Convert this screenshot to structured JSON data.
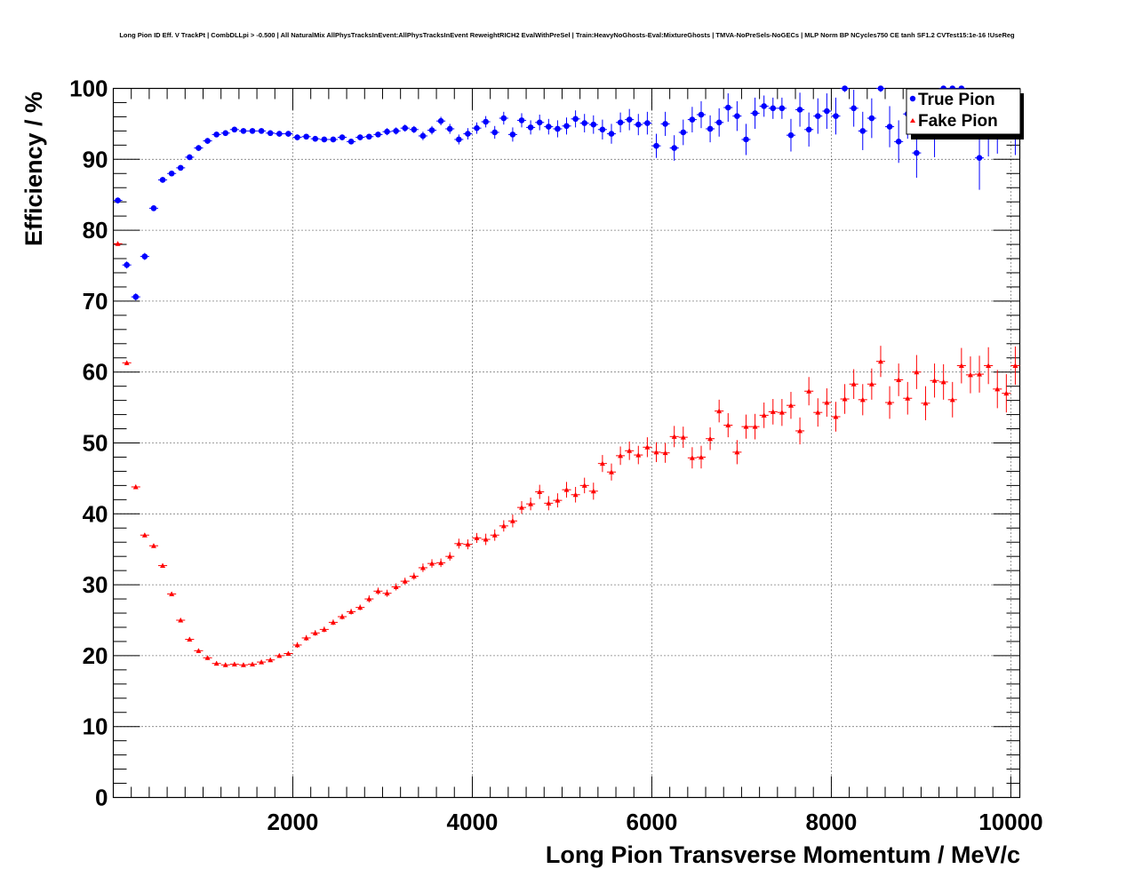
{
  "chart_data": {
    "type": "scatter",
    "title": "Long Pion ID Eff. V TrackPt | CombDLLpi > -0.500 | All NaturalMix AllPhysTracksInEvent:AllPhysTracksInEvent ReweightRICH2 EvalWithPreSel | Train:HeavyNoGhosts-Eval:MixtureGhosts | TMVA-NoPreSels-NoGECs | MLP Norm BP NCycles750 CE tanh SF1.2 CVTest15:1e-16 !UseReg",
    "xlabel": "Long Pion Transverse Momentum / MeV/c",
    "ylabel": "Efficiency / %",
    "xlim": [
      0,
      10100
    ],
    "ylim": [
      0,
      100
    ],
    "x_ticks": [
      2000,
      4000,
      6000,
      8000,
      10000
    ],
    "y_ticks": [
      0,
      10,
      20,
      30,
      40,
      50,
      60,
      70,
      80,
      90,
      100
    ],
    "grid": true,
    "legend_position": "top-right",
    "x": [
      50,
      150,
      250,
      350,
      450,
      550,
      650,
      750,
      850,
      950,
      1050,
      1150,
      1250,
      1350,
      1450,
      1550,
      1650,
      1750,
      1850,
      1950,
      2050,
      2150,
      2250,
      2350,
      2450,
      2550,
      2650,
      2750,
      2850,
      2950,
      3050,
      3150,
      3250,
      3350,
      3450,
      3550,
      3650,
      3750,
      3850,
      3950,
      4050,
      4150,
      4250,
      4350,
      4450,
      4550,
      4650,
      4750,
      4850,
      4950,
      5050,
      5150,
      5250,
      5350,
      5450,
      5550,
      5650,
      5750,
      5850,
      5950,
      6050,
      6150,
      6250,
      6350,
      6450,
      6550,
      6650,
      6750,
      6850,
      6950,
      7050,
      7150,
      7250,
      7350,
      7450,
      7550,
      7650,
      7750,
      7850,
      7950,
      8050,
      8150,
      8250,
      8350,
      8450,
      8550,
      8650,
      8750,
      8850,
      8950,
      9050,
      9150,
      9250,
      9350,
      9450,
      9550,
      9650,
      9750,
      9850,
      9950,
      10050
    ],
    "series": [
      {
        "name": "True Pion",
        "color": "#0000ff",
        "marker": "circle",
        "values": [
          84.2,
          75.1,
          70.6,
          76.3,
          83.1,
          87.1,
          88.0,
          88.8,
          90.3,
          91.6,
          92.6,
          93.5,
          93.7,
          94.2,
          94.0,
          94.0,
          94.0,
          93.7,
          93.6,
          93.6,
          93.1,
          93.2,
          92.9,
          92.8,
          92.8,
          93.1,
          92.5,
          93.1,
          93.2,
          93.5,
          93.9,
          94.0,
          94.4,
          94.2,
          93.3,
          94.1,
          95.4,
          94.3,
          92.8,
          93.6,
          94.4,
          95.3,
          93.8,
          95.8,
          93.5,
          95.5,
          94.5,
          95.2,
          94.6,
          94.3,
          94.7,
          95.7,
          95.1,
          94.9,
          94.2,
          93.6,
          95.2,
          95.6,
          94.9,
          95.1,
          91.9,
          95.0,
          91.6,
          93.8,
          95.6,
          96.3,
          94.3,
          95.2,
          97.3,
          96.1,
          92.8,
          96.5,
          97.5,
          97.2,
          97.2,
          93.4,
          97.0,
          94.2,
          96.1,
          96.8,
          96.1,
          100.0,
          97.2,
          94.0,
          95.8,
          100.0,
          94.6,
          92.5,
          96.4,
          90.9,
          96.3,
          93.5,
          100.0,
          100.0,
          100.0,
          96.4,
          90.2,
          93.9,
          94.3,
          96.8,
          94.1
        ],
        "errors": [
          0.4,
          0.5,
          0.5,
          0.5,
          0.4,
          0.4,
          0.4,
          0.4,
          0.4,
          0.4,
          0.4,
          0.4,
          0.4,
          0.4,
          0.4,
          0.4,
          0.4,
          0.4,
          0.4,
          0.4,
          0.4,
          0.4,
          0.4,
          0.4,
          0.4,
          0.4,
          0.4,
          0.4,
          0.4,
          0.4,
          0.5,
          0.5,
          0.5,
          0.5,
          0.6,
          0.6,
          0.6,
          0.7,
          0.7,
          0.8,
          0.8,
          0.8,
          0.9,
          0.9,
          1.0,
          1.0,
          1.0,
          1.1,
          1.1,
          1.2,
          1.2,
          1.2,
          1.3,
          1.3,
          1.4,
          1.4,
          1.4,
          1.5,
          1.5,
          1.6,
          1.7,
          1.7,
          1.8,
          1.8,
          1.8,
          1.9,
          1.9,
          2.0,
          2.0,
          2.1,
          2.2,
          2.2,
          1.5,
          1.5,
          1.5,
          2.3,
          2.4,
          2.4,
          2.5,
          2.5,
          2.6,
          0.5,
          2.6,
          2.7,
          2.8,
          0.5,
          2.9,
          3.0,
          3.5,
          3.5,
          3.0,
          3.2,
          0.5,
          0.5,
          0.5,
          3.3,
          4.5,
          3.5,
          3.5,
          3.3,
          3.5
        ]
      },
      {
        "name": "Fake Pion",
        "color": "#ff0000",
        "marker": "triangle",
        "values": [
          78.1,
          61.3,
          43.8,
          37.0,
          35.5,
          32.7,
          28.7,
          25.0,
          22.3,
          20.7,
          19.7,
          18.9,
          18.7,
          18.8,
          18.7,
          18.8,
          19.1,
          19.4,
          20.0,
          20.3,
          21.5,
          22.5,
          23.2,
          23.7,
          24.7,
          25.5,
          26.2,
          26.8,
          28.0,
          29.1,
          28.8,
          29.7,
          30.5,
          31.2,
          32.4,
          33.0,
          33.1,
          34.0,
          35.8,
          35.7,
          36.6,
          36.4,
          37.0,
          38.3,
          39.0,
          40.9,
          41.4,
          43.1,
          41.5,
          41.9,
          43.4,
          42.7,
          44.0,
          43.2,
          47.1,
          45.9,
          48.2,
          48.9,
          48.3,
          49.4,
          48.7,
          48.6,
          50.9,
          50.8,
          47.9,
          48.0,
          50.6,
          54.5,
          52.5,
          48.7,
          52.3,
          52.3,
          53.9,
          54.4,
          54.3,
          55.3,
          51.7,
          57.3,
          54.3,
          55.7,
          53.7,
          56.2,
          58.3,
          56.1,
          58.3,
          61.5,
          55.7,
          58.9,
          56.3,
          60.0,
          55.6,
          58.8,
          58.6,
          56.1,
          60.9,
          59.6,
          59.7,
          60.9,
          57.6,
          57.0,
          60.9
        ],
        "errors": [
          0.3,
          0.3,
          0.3,
          0.3,
          0.3,
          0.3,
          0.3,
          0.3,
          0.3,
          0.3,
          0.3,
          0.3,
          0.3,
          0.3,
          0.3,
          0.3,
          0.3,
          0.3,
          0.3,
          0.3,
          0.4,
          0.4,
          0.4,
          0.4,
          0.4,
          0.4,
          0.4,
          0.4,
          0.5,
          0.5,
          0.5,
          0.5,
          0.5,
          0.5,
          0.6,
          0.6,
          0.6,
          0.6,
          0.7,
          0.7,
          0.7,
          0.8,
          0.8,
          0.8,
          0.9,
          0.9,
          0.9,
          1.0,
          1.0,
          1.0,
          1.1,
          1.1,
          1.1,
          1.2,
          1.2,
          1.2,
          1.3,
          1.3,
          1.3,
          1.4,
          1.4,
          1.4,
          1.5,
          1.5,
          1.5,
          1.6,
          1.6,
          1.6,
          1.7,
          1.7,
          1.7,
          1.8,
          1.8,
          1.8,
          1.9,
          1.9,
          1.9,
          2.0,
          2.0,
          2.0,
          2.1,
          2.1,
          2.1,
          2.2,
          2.2,
          2.2,
          2.3,
          2.3,
          2.3,
          2.4,
          2.4,
          2.4,
          2.5,
          2.5,
          2.5,
          2.6,
          2.6,
          2.6,
          2.7,
          2.7,
          2.7
        ]
      }
    ]
  }
}
